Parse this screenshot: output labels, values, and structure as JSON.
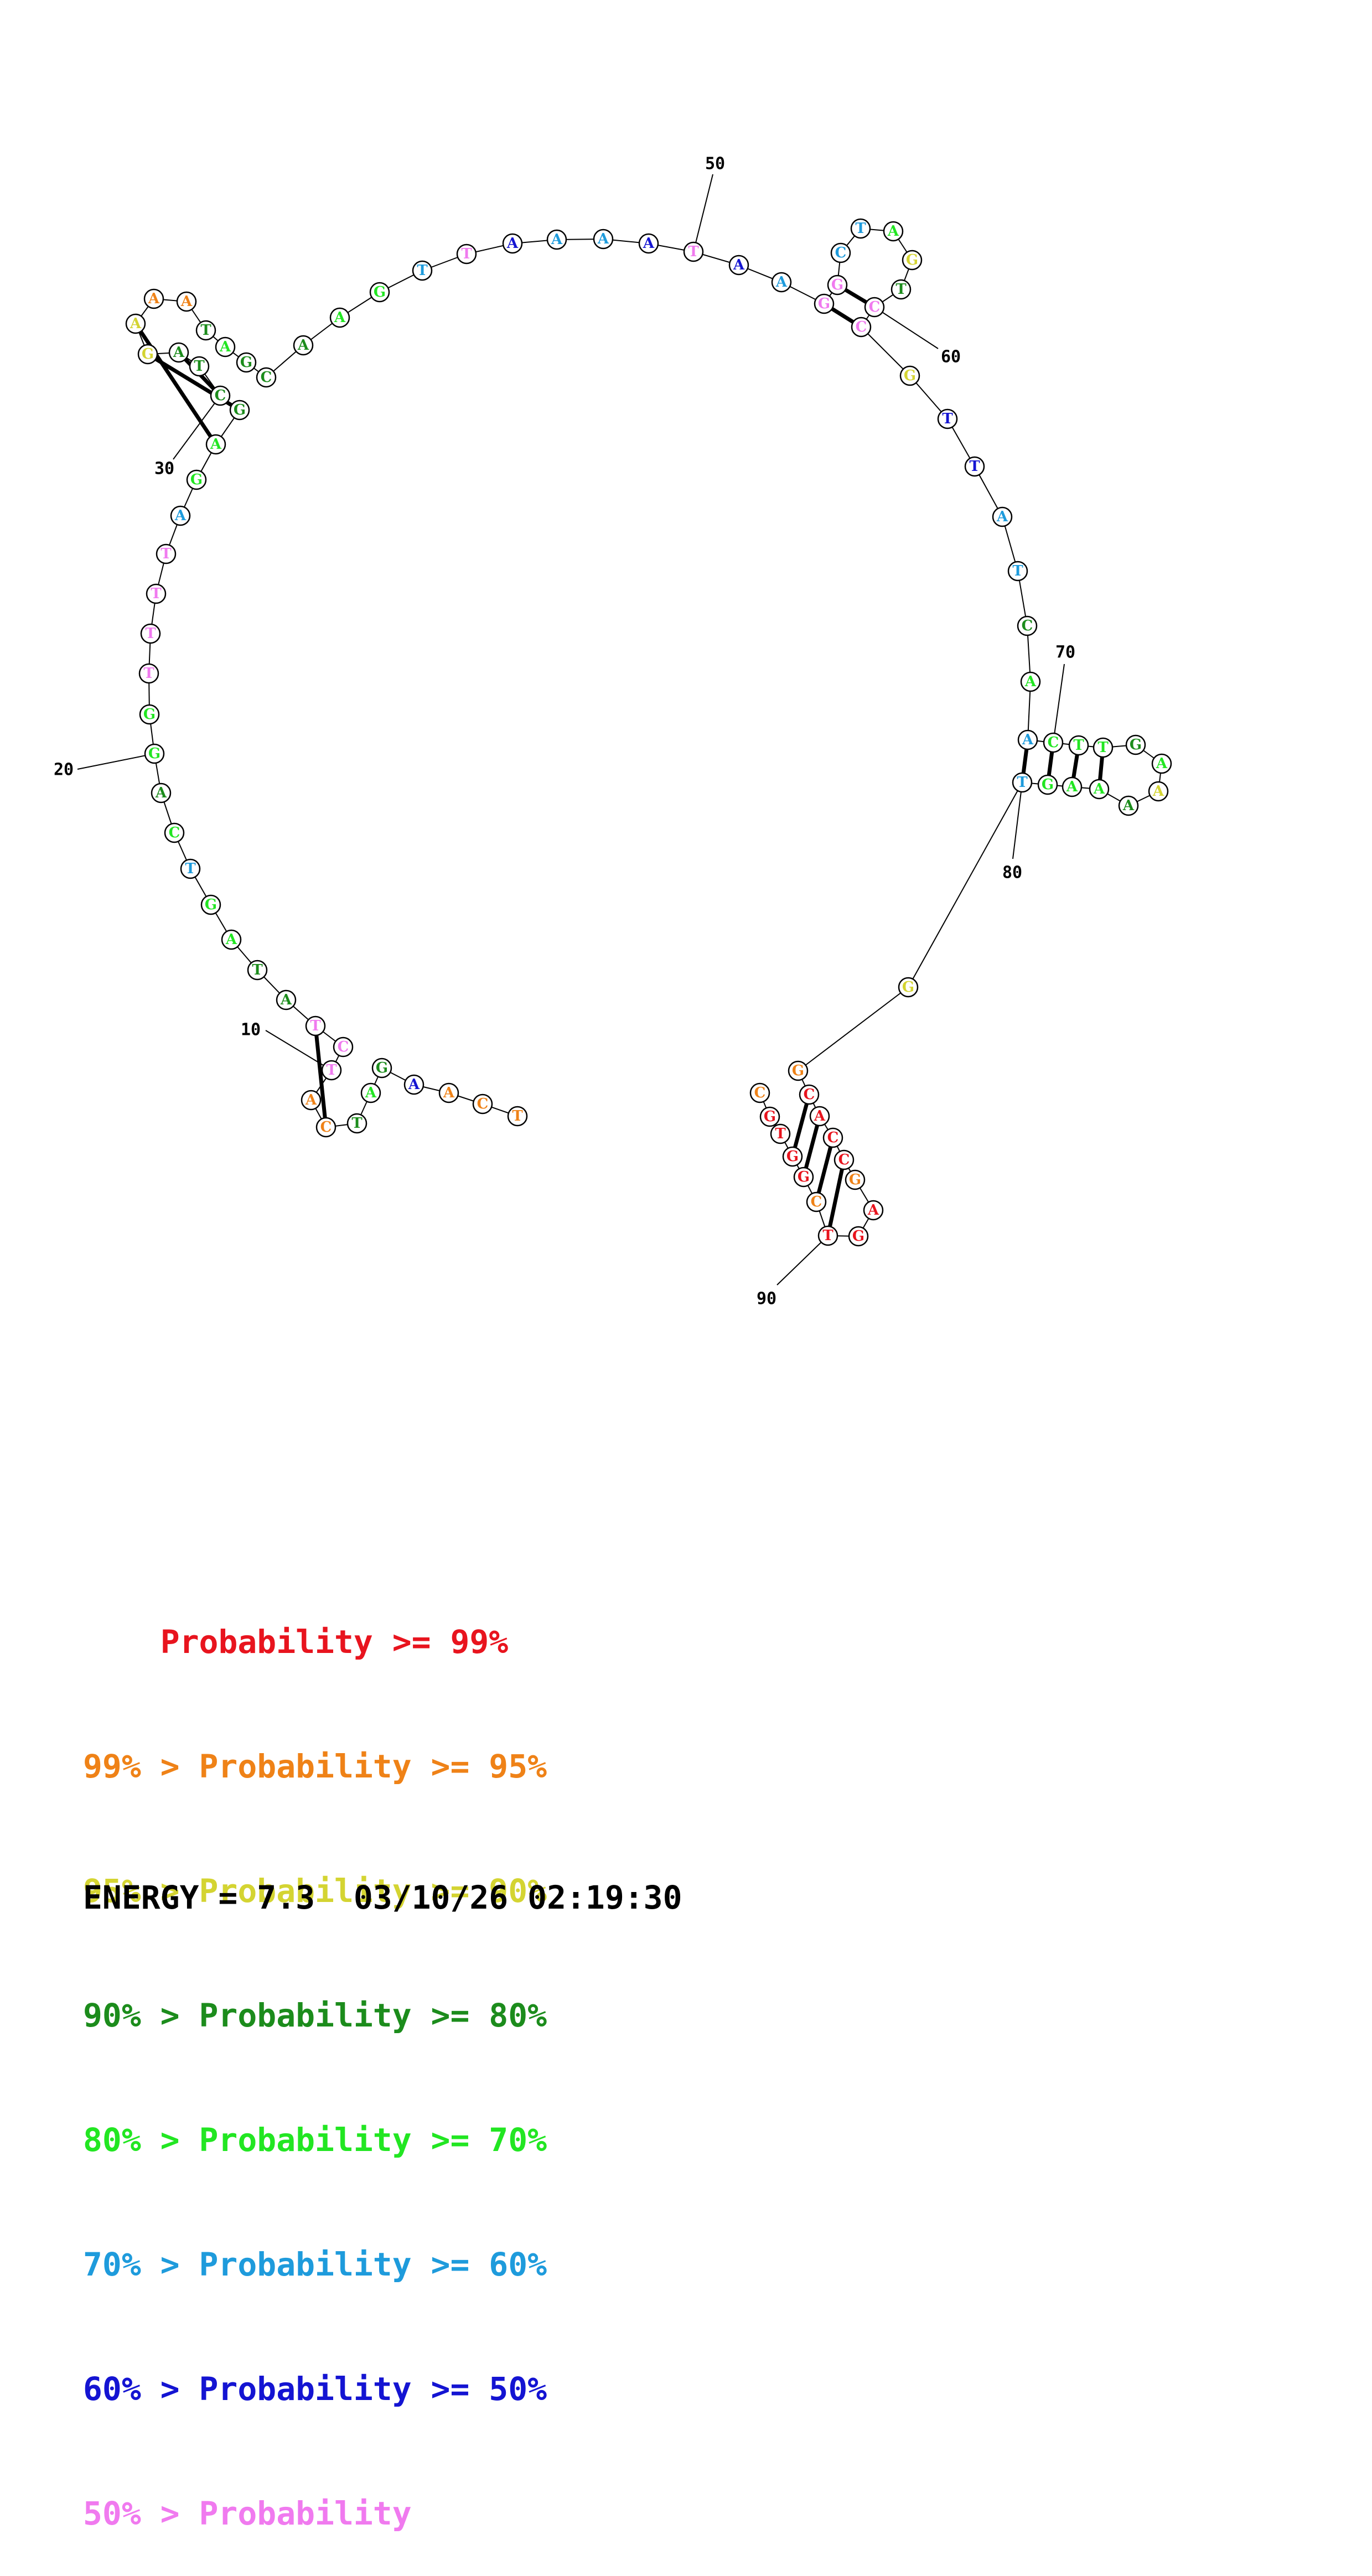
{
  "colors": {
    "p99": "#e8141e",
    "p95": "#ef8217",
    "p90": "#d4d432",
    "p80": "#1c8c1c",
    "p70": "#22e622",
    "p60": "#1e9bdc",
    "p50": "#1414d2",
    "plt50": "#f07aef"
  },
  "bases": [
    {
      "n": 1,
      "b": "T",
      "c": "p95"
    },
    {
      "n": 2,
      "b": "C",
      "c": "p95"
    },
    {
      "n": 3,
      "b": "A",
      "c": "p95"
    },
    {
      "n": 4,
      "b": "A",
      "c": "p50"
    },
    {
      "n": 5,
      "b": "G",
      "c": "p80"
    },
    {
      "n": 6,
      "b": "A",
      "c": "p70"
    },
    {
      "n": 7,
      "b": "T",
      "c": "p80"
    },
    {
      "n": 8,
      "b": "C",
      "c": "p95"
    },
    {
      "n": 9,
      "b": "A",
      "c": "p95"
    },
    {
      "n": 10,
      "b": "T",
      "c": "plt50"
    },
    {
      "n": 11,
      "b": "C",
      "c": "plt50"
    },
    {
      "n": 12,
      "b": "T",
      "c": "plt50"
    },
    {
      "n": 13,
      "b": "A",
      "c": "p80"
    },
    {
      "n": 14,
      "b": "T",
      "c": "p80"
    },
    {
      "n": 15,
      "b": "A",
      "c": "p70"
    },
    {
      "n": 16,
      "b": "G",
      "c": "p70"
    },
    {
      "n": 17,
      "b": "T",
      "c": "p60"
    },
    {
      "n": 18,
      "b": "C",
      "c": "p70"
    },
    {
      "n": 19,
      "b": "A",
      "c": "p80"
    },
    {
      "n": 20,
      "b": "G",
      "c": "p70"
    },
    {
      "n": 21,
      "b": "G",
      "c": "p70"
    },
    {
      "n": 22,
      "b": "T",
      "c": "plt50"
    },
    {
      "n": 23,
      "b": "T",
      "c": "plt50"
    },
    {
      "n": 24,
      "b": "T",
      "c": "plt50"
    },
    {
      "n": 25,
      "b": "T",
      "c": "plt50"
    },
    {
      "n": 26,
      "b": "A",
      "c": "p60"
    },
    {
      "n": 27,
      "b": "G",
      "c": "p70"
    },
    {
      "n": 28,
      "b": "A",
      "c": "p70"
    },
    {
      "n": 29,
      "b": "G",
      "c": "p80"
    },
    {
      "n": 30,
      "b": "C",
      "c": "p80"
    },
    {
      "n": 31,
      "b": "T",
      "c": "p80"
    },
    {
      "n": 32,
      "b": "A",
      "c": "p80"
    },
    {
      "n": 33,
      "b": "G",
      "c": "p90"
    },
    {
      "n": 34,
      "b": "A",
      "c": "p90"
    },
    {
      "n": 35,
      "b": "A",
      "c": "p95"
    },
    {
      "n": 36,
      "b": "A",
      "c": "p95"
    },
    {
      "n": 37,
      "b": "T",
      "c": "p80"
    },
    {
      "n": 38,
      "b": "A",
      "c": "p70"
    },
    {
      "n": 39,
      "b": "G",
      "c": "p80"
    },
    {
      "n": 40,
      "b": "C",
      "c": "p80"
    },
    {
      "n": 41,
      "b": "A",
      "c": "p80"
    },
    {
      "n": 42,
      "b": "A",
      "c": "p70"
    },
    {
      "n": 43,
      "b": "G",
      "c": "p70"
    },
    {
      "n": 44,
      "b": "T",
      "c": "p60"
    },
    {
      "n": 45,
      "b": "T",
      "c": "plt50"
    },
    {
      "n": 46,
      "b": "A",
      "c": "p50"
    },
    {
      "n": 47,
      "b": "A",
      "c": "p60"
    },
    {
      "n": 48,
      "b": "A",
      "c": "p60"
    },
    {
      "n": 49,
      "b": "A",
      "c": "p50"
    },
    {
      "n": 50,
      "b": "T",
      "c": "plt50"
    },
    {
      "n": 51,
      "b": "A",
      "c": "p50"
    },
    {
      "n": 52,
      "b": "A",
      "c": "p60"
    },
    {
      "n": 53,
      "b": "G",
      "c": "plt50"
    },
    {
      "n": 54,
      "b": "G",
      "c": "plt50"
    },
    {
      "n": 55,
      "b": "C",
      "c": "p60"
    },
    {
      "n": 56,
      "b": "T",
      "c": "p60"
    },
    {
      "n": 57,
      "b": "A",
      "c": "p70"
    },
    {
      "n": 58,
      "b": "G",
      "c": "p90"
    },
    {
      "n": 59,
      "b": "T",
      "c": "p80"
    },
    {
      "n": 60,
      "b": "C",
      "c": "plt50"
    },
    {
      "n": 61,
      "b": "C",
      "c": "plt50"
    },
    {
      "n": 62,
      "b": "G",
      "c": "p90"
    },
    {
      "n": 63,
      "b": "T",
      "c": "p50"
    },
    {
      "n": 64,
      "b": "T",
      "c": "p50"
    },
    {
      "n": 65,
      "b": "A",
      "c": "p60"
    },
    {
      "n": 66,
      "b": "T",
      "c": "p60"
    },
    {
      "n": 67,
      "b": "C",
      "c": "p80"
    },
    {
      "n": 68,
      "b": "A",
      "c": "p70"
    },
    {
      "n": 69,
      "b": "A",
      "c": "p60"
    },
    {
      "n": 70,
      "b": "C",
      "c": "p70"
    },
    {
      "n": 71,
      "b": "T",
      "c": "p70"
    },
    {
      "n": 72,
      "b": "T",
      "c": "p70"
    },
    {
      "n": 73,
      "b": "G",
      "c": "p80"
    },
    {
      "n": 74,
      "b": "A",
      "c": "p70"
    },
    {
      "n": 75,
      "b": "A",
      "c": "p90"
    },
    {
      "n": 76,
      "b": "A",
      "c": "p80"
    },
    {
      "n": 77,
      "b": "A",
      "c": "p70"
    },
    {
      "n": 78,
      "b": "A",
      "c": "p70"
    },
    {
      "n": 79,
      "b": "G",
      "c": "p70"
    },
    {
      "n": 80,
      "b": "T",
      "c": "p60"
    },
    {
      "n": 81,
      "b": "G",
      "c": "p90"
    },
    {
      "n": 82,
      "b": "G",
      "c": "p95"
    },
    {
      "n": 83,
      "b": "C",
      "c": "p99"
    },
    {
      "n": 84,
      "b": "A",
      "c": "p99"
    },
    {
      "n": 85,
      "b": "C",
      "c": "p99"
    },
    {
      "n": 86,
      "b": "C",
      "c": "p99"
    },
    {
      "n": 87,
      "b": "G",
      "c": "p95"
    },
    {
      "n": 88,
      "b": "A",
      "c": "p99"
    },
    {
      "n": 89,
      "b": "G",
      "c": "p99"
    },
    {
      "n": 90,
      "b": "T",
      "c": "p99"
    },
    {
      "n": 91,
      "b": "C",
      "c": "p95"
    },
    {
      "n": 92,
      "b": "G",
      "c": "p99"
    },
    {
      "n": 93,
      "b": "G",
      "c": "p99"
    },
    {
      "n": 94,
      "b": "T",
      "c": "p99"
    },
    {
      "n": 95,
      "b": "G",
      "c": "p99"
    },
    {
      "n": 96,
      "b": "C",
      "c": "p95"
    }
  ],
  "pairs": [
    [
      8,
      12
    ],
    [
      29,
      33
    ],
    [
      30,
      32
    ],
    [
      28,
      34
    ],
    [
      53,
      61
    ],
    [
      54,
      60
    ],
    [
      69,
      80
    ],
    [
      70,
      79
    ],
    [
      71,
      78
    ],
    [
      72,
      77
    ],
    [
      83,
      93
    ],
    [
      84,
      92
    ],
    [
      85,
      91
    ],
    [
      86,
      90
    ]
  ],
  "position_labels": [
    {
      "n": 10,
      "text": "10"
    },
    {
      "n": 20,
      "text": "20"
    },
    {
      "n": 30,
      "text": "30"
    },
    {
      "n": 50,
      "text": "50"
    },
    {
      "n": 60,
      "text": "60"
    },
    {
      "n": 70,
      "text": "70"
    },
    {
      "n": 80,
      "text": "80"
    },
    {
      "n": 90,
      "text": "90"
    }
  ],
  "legend": [
    {
      "prefix": "    ",
      "label": "Probability >= 99%",
      "color": "p99"
    },
    {
      "prefix": "99% > ",
      "label": "Probability >= 95%",
      "color": "p95"
    },
    {
      "prefix": "95% > ",
      "label": "Probability >= 90%",
      "color": "p90"
    },
    {
      "prefix": "90% > ",
      "label": "Probability >= 80%",
      "color": "p80"
    },
    {
      "prefix": "80% > ",
      "label": "Probability >= 70%",
      "color": "p70"
    },
    {
      "prefix": "70% > ",
      "label": "Probability >= 60%",
      "color": "p60"
    },
    {
      "prefix": "60% > ",
      "label": "Probability >= 50%",
      "color": "p50"
    },
    {
      "prefix": "50% > ",
      "label": "Probability",
      "color": "plt50"
    }
  ],
  "energy": {
    "label": "ENERGY = 7.3",
    "timestamp": "03/10/26 02:19:30"
  }
}
